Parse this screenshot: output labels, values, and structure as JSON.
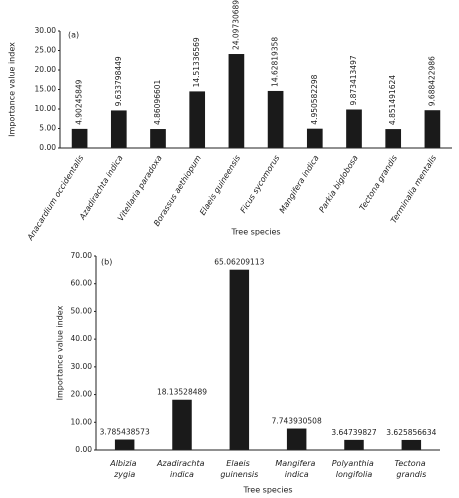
{
  "chart_data": [
    {
      "type": "bar",
      "panel_label": "(a)",
      "y_label": "Importance value index",
      "x_label": "Tree species",
      "categories": [
        "Anacardium occidentalis",
        "Azadirachta indica",
        "Vitellaria paradoxa",
        "Borassus aethiopum",
        "Elaeis guineensis",
        "Ficus sycomorus",
        "Mangifera indica",
        "Parkia biglobosa",
        "Tectona grandis",
        "Terminalia mentalis"
      ],
      "values": [
        4.90245849,
        9.633798449,
        4.86096601,
        14.51336569,
        24.09730689,
        14.62819358,
        4.950582298,
        9.873413497,
        4.851491624,
        9.688422986
      ],
      "color": "#1a1a1a",
      "grid": false,
      "ylim": [
        0,
        30
      ],
      "yticks": [
        {
          "value": 0,
          "label": "0.00"
        },
        {
          "value": 5,
          "label": "5.00"
        },
        {
          "value": 10,
          "label": "10.00"
        },
        {
          "value": 15,
          "label": "15.00"
        },
        {
          "value": 20,
          "label": "20.00"
        },
        {
          "value": 25,
          "label": "25.00"
        },
        {
          "value": 30,
          "label": "30.00"
        }
      ]
    },
    {
      "type": "bar",
      "panel_label": "(b)",
      "y_label": "Importance value index",
      "x_label": "Tree species",
      "categories": [
        "Albizia zygia",
        "Azadirachta indica",
        "Elaeis guinensis",
        "Mangifera indica",
        "Polyanthia longifolia",
        "Tectona grandis"
      ],
      "values": [
        3.785438573,
        18.13528489,
        65.06209113,
        7.743930508,
        3.64739827,
        3.625856634
      ],
      "color": "#1a1a1a",
      "grid": false,
      "ylim": [
        0,
        70
      ],
      "yticks": [
        {
          "value": 0,
          "label": "0.00"
        },
        {
          "value": 10,
          "label": "10.00"
        },
        {
          "value": 20,
          "label": "20.00"
        },
        {
          "value": 30,
          "label": "30.00"
        },
        {
          "value": 40,
          "label": "40.00"
        },
        {
          "value": 50,
          "label": "50.00"
        },
        {
          "value": 60,
          "label": "60.00"
        },
        {
          "value": 70,
          "label": "70.00"
        }
      ]
    }
  ]
}
